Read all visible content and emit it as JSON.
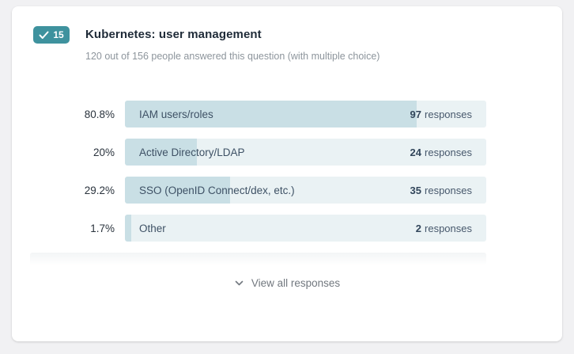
{
  "page": {
    "background_color": "#f1f1f3",
    "card_color": "#ffffff"
  },
  "header": {
    "badge": {
      "icon": "check",
      "number": "15",
      "color": "#3e929e"
    },
    "title": "Kubernetes: user management",
    "subtitle": "120 out of 156 people answered this question (with multiple choice)"
  },
  "chart_data": {
    "type": "bar",
    "orientation": "horizontal",
    "title": "Kubernetes: user management",
    "categories": [
      "IAM users/roles",
      "Active Directory/LDAP",
      "SSO (OpenID Connect/dex, etc.)",
      "Other"
    ],
    "values": [
      97,
      24,
      35,
      2
    ],
    "percentages": [
      80.8,
      20,
      29.2,
      1.7
    ],
    "percent_labels": [
      "80.8%",
      "20%",
      "29.2%",
      "1.7%"
    ],
    "value_label_suffix": "responses",
    "legend": false,
    "axis_max_percent": 100,
    "colors": {
      "bar_fill": "#c9dfe5",
      "bar_track": "#eaf2f4",
      "accent": "#3e929e"
    },
    "rows": [
      {
        "percent": "80.8%",
        "label": "IAM users/roles",
        "count": "97",
        "suffix": "responses",
        "width_pct": 80.8
      },
      {
        "percent": "20%",
        "label": "Active Directory/LDAP",
        "count": "24",
        "suffix": "responses",
        "width_pct": 20
      },
      {
        "percent": "29.2%",
        "label": "SSO (OpenID Connect/dex, etc.)",
        "count": "35",
        "suffix": "responses",
        "width_pct": 29.2
      },
      {
        "percent": "1.7%",
        "label": "Other",
        "count": "2",
        "suffix": "responses",
        "width_pct": 1.7
      }
    ]
  },
  "footer": {
    "view_all_label": "View all responses",
    "icon": "chevron-down"
  }
}
